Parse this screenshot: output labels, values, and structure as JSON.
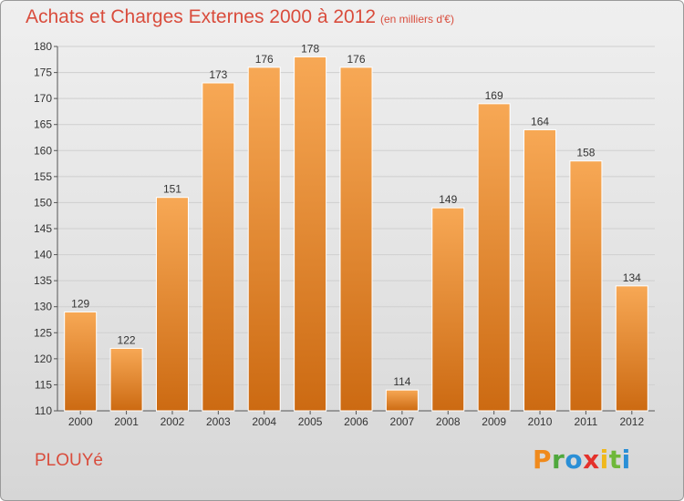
{
  "header": {
    "title": "Achats et Charges Externes 2000 à 2012",
    "subtitle": "(en milliers d'€)"
  },
  "footer": {
    "commune": "PLOUYé",
    "logo": {
      "letters": [
        "P",
        "r",
        "o",
        "x",
        "i",
        "t",
        "i"
      ],
      "colors": [
        "#f08a1c",
        "#4fa83d",
        "#2a8fd6",
        "#e4312b",
        "#f0b81c",
        "#6fb83a",
        "#2a8fd6"
      ]
    }
  },
  "colors": {
    "bar_top": "#f7a855",
    "bar_bottom": "#cc6a12",
    "bar_edge": "#ffffff",
    "grid": "#cfcfcf",
    "axis": "#555555",
    "text": "#333333",
    "title": "#d94c3c"
  },
  "chart_data": {
    "type": "bar",
    "categories": [
      "2000",
      "2001",
      "2002",
      "2003",
      "2004",
      "2005",
      "2006",
      "2007",
      "2008",
      "2009",
      "2010",
      "2011",
      "2012"
    ],
    "values": [
      129,
      122,
      151,
      173,
      176,
      178,
      176,
      114,
      149,
      169,
      164,
      158,
      134
    ],
    "data_labels": [
      "129",
      "122",
      "151",
      "173",
      "176",
      "178",
      "176",
      "114",
      "149",
      "169",
      "164",
      "158",
      "134"
    ],
    "yticks": [
      "110",
      "115",
      "120",
      "125",
      "130",
      "135",
      "140",
      "145",
      "150",
      "155",
      "160",
      "165",
      "170",
      "175",
      "180"
    ],
    "ylim": [
      110,
      180
    ],
    "title": "Achats et Charges Externes 2000 à 2012",
    "xlabel": "",
    "ylabel": "",
    "grid": true
  }
}
